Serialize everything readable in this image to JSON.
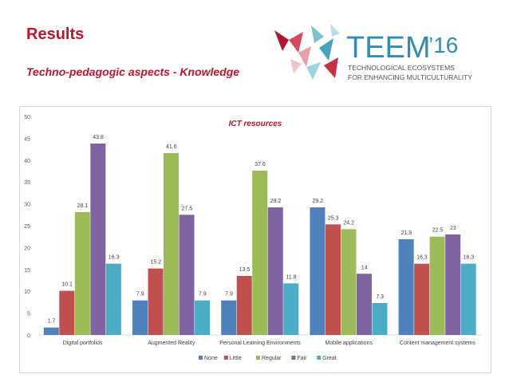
{
  "slide": {
    "title": "Results",
    "subtitle": "Techno-pedagogic aspects - Knowledge"
  },
  "logo": {
    "main": "TEEM",
    "year": "’16",
    "line1": "TECHNOLOGICAL ECOSYSTEMS",
    "line2": "FOR ENHANCING MULTICULTURALITY"
  },
  "colors": {
    "accent": "#c0142c",
    "None": "#4f81bd",
    "Little": "#c0504d",
    "Regular": "#9bbb59",
    "Fair": "#8064a2",
    "Great": "#4bacc6"
  },
  "chart_data": {
    "type": "bar",
    "title": "ICT resources",
    "xlabel": "",
    "ylabel": "",
    "ylim": [
      0,
      50
    ],
    "yticks": [
      0,
      5,
      10,
      15,
      20,
      25,
      30,
      35,
      40,
      45,
      50
    ],
    "grid": false,
    "legend_position": "bottom",
    "categories": [
      "Digital portfolios",
      "Augmented Reality",
      "Personal Learning Environments",
      "Mobile applications",
      "Content management systems"
    ],
    "series": [
      {
        "name": "None",
        "values": [
          1.7,
          7.9,
          7.9,
          29.2,
          21.9
        ]
      },
      {
        "name": "Little",
        "values": [
          10.1,
          15.2,
          13.5,
          25.3,
          16.3
        ]
      },
      {
        "name": "Regular",
        "values": [
          28.1,
          41.6,
          37.6,
          24.2,
          22.5
        ]
      },
      {
        "name": "Fair",
        "values": [
          43.8,
          27.5,
          29.2,
          14,
          23
        ]
      },
      {
        "name": "Great",
        "values": [
          16.3,
          7.9,
          11.8,
          7.3,
          16.3
        ]
      }
    ]
  }
}
